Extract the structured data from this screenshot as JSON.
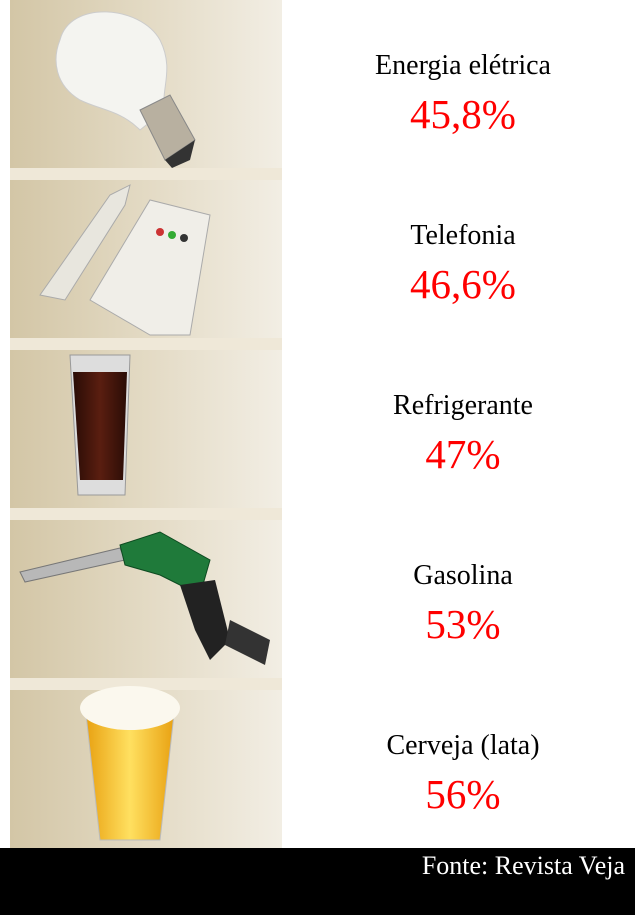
{
  "items": [
    {
      "label": "Energia elétrica",
      "value": "45,8%"
    },
    {
      "label": "Telefonia",
      "value": "46,6%"
    },
    {
      "label": "Refrigerante",
      "value": "47%"
    },
    {
      "label": "Gasolina",
      "value": "53%"
    },
    {
      "label": "Cerveja (lata)",
      "value": "56%"
    }
  ],
  "source": "Fonte: Revista Veja"
}
